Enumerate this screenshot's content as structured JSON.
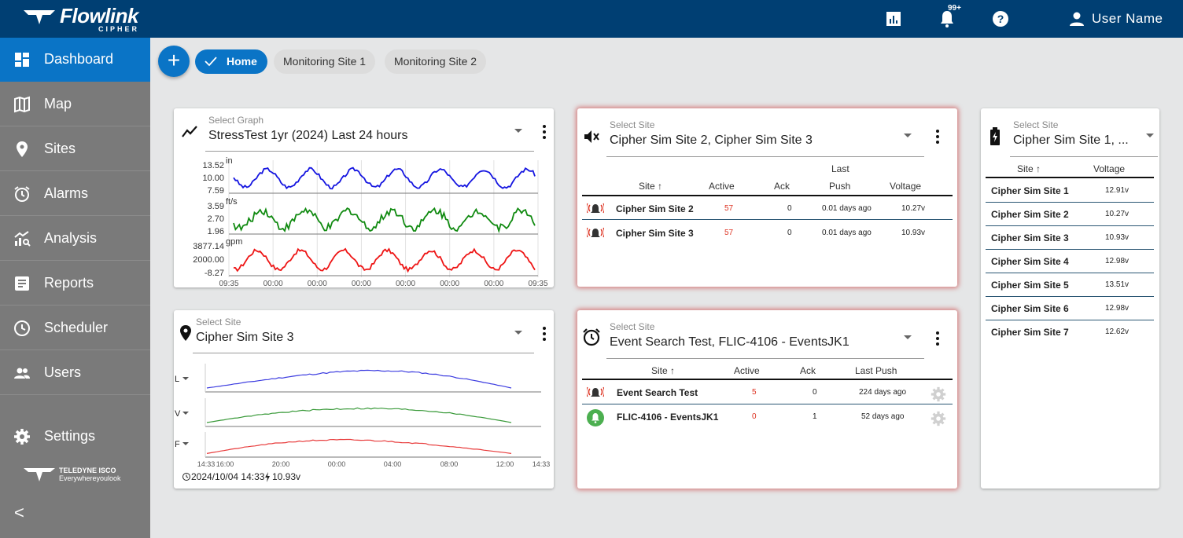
{
  "app": {
    "brand": "Flowlink",
    "sub_brand": "CIPHER",
    "notification_count": "99+",
    "user_name": "User Name"
  },
  "sidebar": {
    "items": [
      {
        "label": "Dashboard",
        "icon": "dashboard-icon",
        "active": true
      },
      {
        "label": "Map",
        "icon": "map-icon"
      },
      {
        "label": "Sites",
        "icon": "location-pin-icon"
      },
      {
        "label": "Alarms",
        "icon": "alarm-clock-icon"
      },
      {
        "label": "Analysis",
        "icon": "analysis-icon"
      },
      {
        "label": "Reports",
        "icon": "reports-icon"
      },
      {
        "label": "Scheduler",
        "icon": "clock-icon"
      },
      {
        "label": "Users",
        "icon": "users-icon"
      },
      {
        "label": "Settings",
        "icon": "gear-icon"
      }
    ],
    "footer_brand": "TELEDYNE ISCO",
    "footer_tagline": "Everywhereyoulook",
    "collapse_label": "<"
  },
  "tabs": [
    {
      "label": "Home",
      "active": true
    },
    {
      "label": "Monitoring Site 1"
    },
    {
      "label": "Monitoring Site 2"
    }
  ],
  "add_button": "+",
  "graph_card": {
    "select_label": "Select Graph",
    "value": "StressTest 1yr (2024) Last 24 hours",
    "series": [
      {
        "unit": "in",
        "ticks": [
          "13.52",
          "10.00",
          "7.59"
        ],
        "color": "#1515e0"
      },
      {
        "unit": "ft/s",
        "ticks": [
          "3.59",
          "2.70",
          "1.96"
        ],
        "color": "#108a10"
      },
      {
        "unit": "gpm",
        "ticks": [
          "3877.14",
          "2000.00",
          "-8.27"
        ],
        "color": "#ee1515"
      }
    ],
    "x_ticks": [
      "09:35",
      "00:00",
      "00:00",
      "00:00",
      "00:00",
      "00:00",
      "00:00",
      "09:35"
    ]
  },
  "site_graph_card": {
    "select_label": "Select Site",
    "value": "Cipher Sim Site 3",
    "rows": [
      {
        "label": "L",
        "color": "#3c3ce0"
      },
      {
        "label": "V",
        "color": "#3a9a3a"
      },
      {
        "label": "F",
        "color": "#e83c3c"
      }
    ],
    "x_ticks": [
      "14:33",
      "16:00",
      "20:00",
      "00:00",
      "04:00",
      "08:00",
      "12:00",
      "14:33"
    ],
    "timestamp": "2024/10/04 14:33",
    "voltage": "10.93v"
  },
  "alarm_card": {
    "select_label": "Select Site",
    "value": "Cipher Sim Site 2, Cipher Sim Site 3",
    "headers": {
      "site": "Site",
      "active": "Active",
      "ack": "Ack",
      "last_push_top": "Last",
      "last_push": "Push",
      "voltage": "Voltage"
    },
    "rows": [
      {
        "site": "Cipher Sim Site 2",
        "active": "57",
        "ack": "0",
        "last_push": "0.01 days ago",
        "voltage": "10.27v"
      },
      {
        "site": "Cipher Sim Site 3",
        "active": "57",
        "ack": "0",
        "last_push": "0.01 days ago",
        "voltage": "10.93v"
      }
    ]
  },
  "event_card": {
    "select_label": "Select Site",
    "value": "Event Search Test, FLIC-4106 - EventsJK1",
    "headers": {
      "site": "Site",
      "active": "Active",
      "ack": "Ack",
      "last_push": "Last Push"
    },
    "rows": [
      {
        "site": "Event Search Test",
        "active": "5",
        "ack": "0",
        "last_push": "224 days ago",
        "status": "alarm"
      },
      {
        "site": "FLIC-4106 - EventsJK1",
        "active": "0",
        "ack": "1",
        "last_push": "52 days ago",
        "status": "ok"
      }
    ]
  },
  "voltage_card": {
    "select_label": "Select Site",
    "value": "Cipher Sim Site 1, ...",
    "headers": {
      "site": "Site",
      "voltage": "Voltage"
    },
    "rows": [
      {
        "site": "Cipher Sim Site 1",
        "voltage": "12.91v"
      },
      {
        "site": "Cipher Sim Site 2",
        "voltage": "10.27v"
      },
      {
        "site": "Cipher Sim Site 3",
        "voltage": "10.93v"
      },
      {
        "site": "Cipher Sim Site 4",
        "voltage": "12.98v"
      },
      {
        "site": "Cipher Sim Site 5",
        "voltage": "13.51v"
      },
      {
        "site": "Cipher Sim Site 6",
        "voltage": "12.98v"
      },
      {
        "site": "Cipher Sim Site 7",
        "voltage": "12.62v"
      }
    ]
  }
}
